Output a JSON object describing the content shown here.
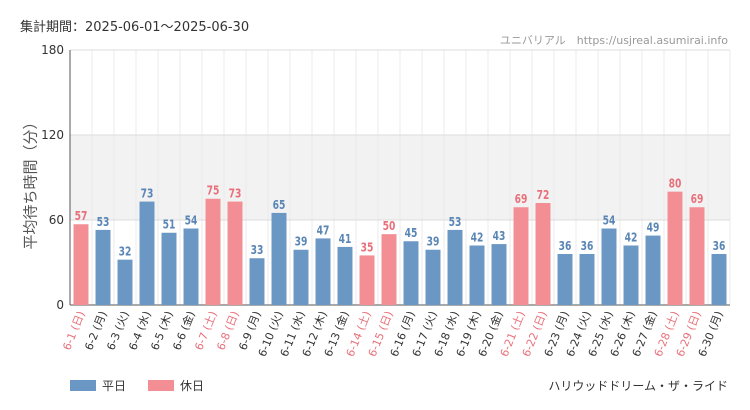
{
  "header": {
    "period": "集計期間：2025-06-01～2025-06-30",
    "credit": "ユニバリアル　https://usjreal.asumirai.info"
  },
  "footer": {
    "ride_name": "ハリウッドドリーム・ザ・ライド"
  },
  "colors": {
    "weekday": "#6b97c4",
    "holiday": "#f28e94",
    "holiday_text": "#e8707a",
    "weekday_text": "#5a86b5"
  },
  "chart_data": {
    "type": "bar",
    "title": "",
    "xlabel": "",
    "ylabel": "平均待ち時間（分）",
    "ylim": [
      0,
      180
    ],
    "yticks": [
      0,
      60,
      120,
      180
    ],
    "grid": true,
    "legend_position": "bottom-left",
    "categories": [
      "6-1 (日)",
      "6-2 (月)",
      "6-3 (火)",
      "6-4 (水)",
      "6-5 (木)",
      "6-6 (金)",
      "6-7 (土)",
      "6-8 (日)",
      "6-9 (月)",
      "6-10 (火)",
      "6-11 (水)",
      "6-12 (木)",
      "6-13 (金)",
      "6-14 (土)",
      "6-15 (日)",
      "6-16 (月)",
      "6-17 (火)",
      "6-18 (水)",
      "6-19 (木)",
      "6-20 (金)",
      "6-21 (土)",
      "6-22 (日)",
      "6-23 (月)",
      "6-24 (火)",
      "6-25 (水)",
      "6-26 (木)",
      "6-27 (金)",
      "6-28 (土)",
      "6-29 (日)",
      "6-30 (月)"
    ],
    "values": [
      57,
      53,
      32,
      73,
      51,
      54,
      75,
      73,
      33,
      65,
      39,
      47,
      41,
      35,
      50,
      45,
      39,
      53,
      42,
      43,
      69,
      72,
      36,
      36,
      54,
      42,
      49,
      80,
      69,
      36
    ],
    "day_type": [
      "休日",
      "平日",
      "平日",
      "平日",
      "平日",
      "平日",
      "休日",
      "休日",
      "平日",
      "平日",
      "平日",
      "平日",
      "平日",
      "休日",
      "休日",
      "平日",
      "平日",
      "平日",
      "平日",
      "平日",
      "休日",
      "休日",
      "平日",
      "平日",
      "平日",
      "平日",
      "平日",
      "休日",
      "休日",
      "平日"
    ],
    "legend": [
      "平日",
      "休日"
    ]
  }
}
